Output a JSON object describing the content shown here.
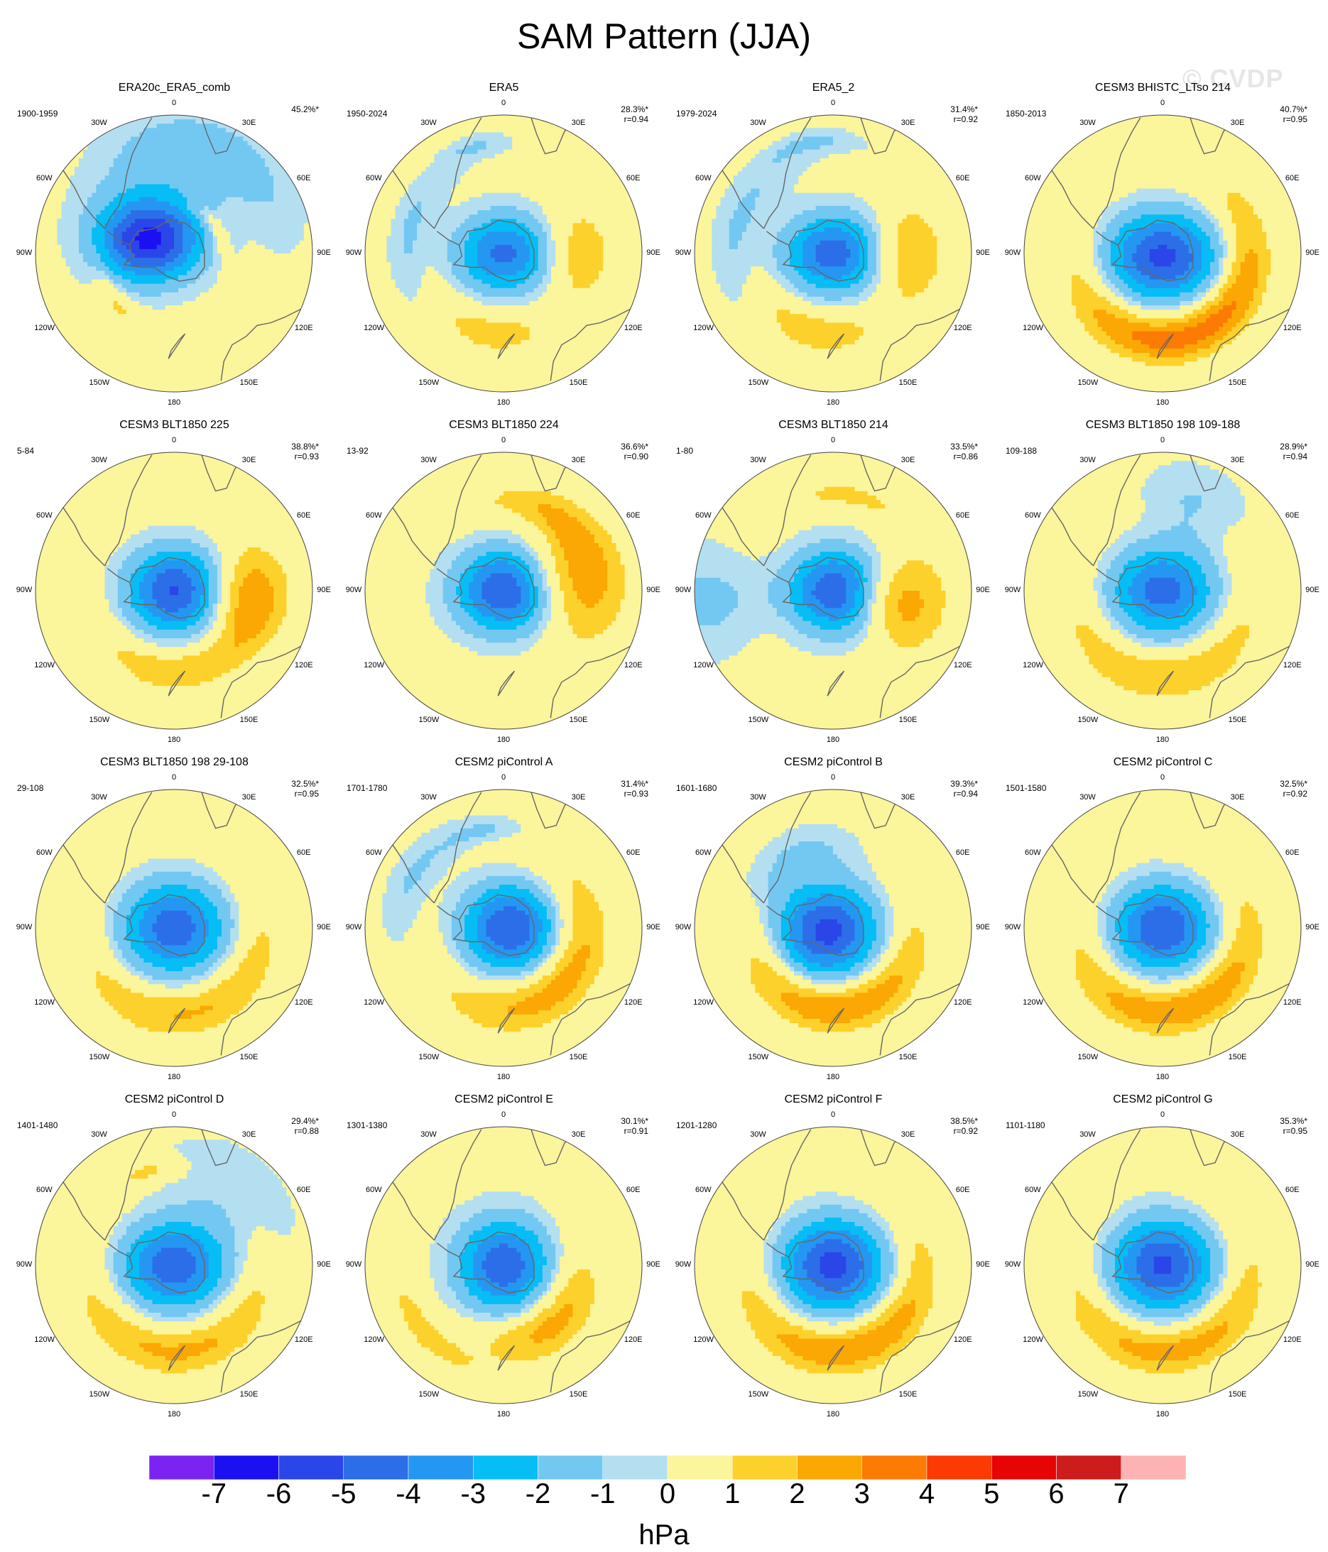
{
  "title": "SAM Pattern (JJA)",
  "watermark": "© CVDP",
  "colors": {
    "negative": [
      "#7b24f2",
      "#1b10f2",
      "#2a46e8",
      "#2c6ee8",
      "#2497f2",
      "#06bdf5",
      "#73c8f2",
      "#b4dff1"
    ],
    "positive": [
      "#fbf59b",
      "#fdd12c",
      "#fba704",
      "#fb7b04",
      "#fb3a04",
      "#e60404",
      "#cd1c1c",
      "#fdb3b3"
    ],
    "coast": "#666666",
    "border": "#444444"
  },
  "colorbar": {
    "ticks": [
      "-7",
      "-6",
      "-5",
      "-4",
      "-3",
      "-2",
      "-1",
      "0",
      "1",
      "2",
      "3",
      "4",
      "5",
      "6",
      "7"
    ],
    "unit": "hPa"
  },
  "lon_labels": [
    "0",
    "30E",
    "60E",
    "90E",
    "120E",
    "150E",
    "180",
    "150W",
    "120W",
    "90W",
    "60W",
    "30W"
  ],
  "panels": [
    {
      "title": "ERA20c_ERA5_comb",
      "period": "1900-1959",
      "pct": "45.2%*",
      "r": "",
      "field": {
        "core": -6.3,
        "ax": 0.4,
        "ay": 0.32,
        "cx": -0.18,
        "cy": 0.1,
        "pos": [
          [
            60,
            0.36,
            1.5,
            0.22,
            0.06
          ],
          [
            230,
            0.55,
            1.5,
            0.16,
            0.1
          ]
        ],
        "negext": [
          [
            355,
            0.68,
            -1.2,
            0.3,
            0.42
          ],
          [
            40,
            0.8,
            -1.0,
            0.3,
            0.3
          ]
        ]
      }
    },
    {
      "title": "ERA5",
      "period": "1950-2024",
      "pct": "28.3%*",
      "r": "r=0.94",
      "field": {
        "core": -4.3,
        "ax": 0.36,
        "ay": 0.3,
        "cx": 0.0,
        "cy": 0.0,
        "pos": [
          [
            90,
            0.55,
            1.8,
            0.22,
            0.28
          ],
          [
            190,
            0.58,
            1.6,
            0.28,
            0.18
          ]
        ],
        "negext": [
          [
            285,
            0.7,
            -1.1,
            0.3,
            0.16
          ],
          [
            345,
            0.8,
            -1.0,
            0.12,
            0.1
          ]
        ]
      }
    },
    {
      "title": "ERA5_2",
      "period": "1979-2024",
      "pct": "31.4%*",
      "r": "r=0.92",
      "field": {
        "core": -4.6,
        "ax": 0.37,
        "ay": 0.3,
        "cx": 0.0,
        "cy": 0.0,
        "pos": [
          [
            90,
            0.55,
            2.1,
            0.22,
            0.3
          ],
          [
            195,
            0.58,
            1.8,
            0.3,
            0.18
          ]
        ],
        "negext": [
          [
            290,
            0.72,
            -1.1,
            0.34,
            0.2
          ],
          [
            350,
            0.82,
            -1.0,
            0.16,
            0.1
          ]
        ]
      }
    },
    {
      "title": "CESM3 BHISTC_LTso 214",
      "period": "1850-2013",
      "pct": "40.7%*",
      "r": "r=0.95",
      "field": {
        "core": -5.3,
        "ax": 0.42,
        "ay": 0.34,
        "cx": 0.0,
        "cy": -0.02,
        "pos": [
          [
            120,
            0.62,
            2.6,
            0.5,
            0.2
          ],
          [
            200,
            0.62,
            2.2,
            0.45,
            0.2
          ]
        ],
        "negext": []
      }
    },
    {
      "title": "CESM3 BLT1850 225",
      "period": "5-84",
      "pct": "38.8%*",
      "r": "r=0.93",
      "field": {
        "core": -5.1,
        "ax": 0.36,
        "ay": 0.32,
        "cx": 0.0,
        "cy": 0.0,
        "pos": [
          [
            95,
            0.55,
            2.8,
            0.22,
            0.32
          ],
          [
            175,
            0.58,
            1.9,
            0.4,
            0.18
          ]
        ],
        "negext": []
      }
    },
    {
      "title": "CESM3 BLT1850 224",
      "period": "13-92",
      "pct": "36.6%*",
      "r": "r=0.90",
      "field": {
        "core": -5.0,
        "ax": 0.37,
        "ay": 0.32,
        "cx": 0.0,
        "cy": 0.0,
        "pos": [
          [
            80,
            0.55,
            2.6,
            0.28,
            0.4
          ],
          [
            30,
            0.65,
            1.6,
            0.3,
            0.16
          ]
        ],
        "negext": []
      }
    },
    {
      "title": "CESM3 BLT1850 214",
      "period": "1-80",
      "pct": "33.5%*",
      "r": "r=0.86",
      "field": {
        "core": -4.8,
        "ax": 0.34,
        "ay": 0.32,
        "cx": 0.0,
        "cy": 0.0,
        "pos": [
          [
            100,
            0.52,
            2.5,
            0.22,
            0.36
          ],
          [
            10,
            0.7,
            1.5,
            0.2,
            0.1
          ]
        ],
        "negext": [
          [
            265,
            0.9,
            -1.2,
            0.16,
            0.55
          ]
        ]
      }
    },
    {
      "title": "CESM3 BLT1850 198 109-188",
      "period": "109-188",
      "pct": "28.9%*",
      "r": "r=0.94",
      "field": {
        "core": -4.5,
        "ax": 0.4,
        "ay": 0.34,
        "cx": 0.0,
        "cy": 0.0,
        "pos": [
          [
            180,
            0.62,
            2.0,
            0.6,
            0.2
          ]
        ],
        "negext": [
          [
            20,
            0.68,
            -1.1,
            0.2,
            0.32
          ]
        ]
      }
    },
    {
      "title": "CESM3 BLT1850 198 29-108",
      "period": "29-108",
      "pct": "32.5%*",
      "r": "r=0.95",
      "field": {
        "core": -4.7,
        "ax": 0.4,
        "ay": 0.36,
        "cx": 0.0,
        "cy": 0.0,
        "pos": [
          [
            165,
            0.62,
            2.2,
            0.6,
            0.2
          ]
        ],
        "negext": []
      }
    },
    {
      "title": "CESM2 piControl A",
      "period": "1701-1780",
      "pct": "31.4%*",
      "r": "r=0.93",
      "field": {
        "core": -5.0,
        "ax": 0.36,
        "ay": 0.34,
        "cx": 0.04,
        "cy": 0.0,
        "pos": [
          [
            135,
            0.58,
            2.7,
            0.55,
            0.22
          ]
        ],
        "negext": [
          [
            300,
            0.75,
            -1.1,
            0.26,
            0.18
          ],
          [
            350,
            0.72,
            -1.0,
            0.14,
            0.1
          ]
        ]
      }
    },
    {
      "title": "CESM2 piControl B",
      "period": "1601-1680",
      "pct": "39.3%*",
      "r": "r=0.94",
      "field": {
        "core": -5.4,
        "ax": 0.38,
        "ay": 0.36,
        "cx": -0.04,
        "cy": -0.02,
        "pos": [
          [
            175,
            0.58,
            3.1,
            0.55,
            0.2
          ]
        ],
        "negext": [
          [
            330,
            0.58,
            -1.2,
            0.3,
            0.22
          ]
        ]
      }
    },
    {
      "title": "CESM2 piControl C",
      "period": "1501-1580",
      "pct": "32.5%*",
      "r": "r=0.92",
      "field": {
        "core": -5.0,
        "ax": 0.38,
        "ay": 0.34,
        "cx": 0.0,
        "cy": 0.0,
        "pos": [
          [
            165,
            0.6,
            3.0,
            0.6,
            0.2
          ]
        ],
        "negext": []
      }
    },
    {
      "title": "CESM2 piControl D",
      "period": "1401-1480",
      "pct": "29.4%*",
      "r": "r=0.88",
      "field": {
        "core": -4.8,
        "ax": 0.4,
        "ay": 0.34,
        "cx": 0.0,
        "cy": 0.0,
        "pos": [
          [
            175,
            0.62,
            2.3,
            0.6,
            0.2
          ],
          [
            345,
            0.7,
            1.5,
            0.12,
            0.1
          ]
        ],
        "negext": [
          [
            40,
            0.68,
            -1.1,
            0.3,
            0.36
          ]
        ]
      }
    },
    {
      "title": "CESM2 piControl E",
      "period": "1301-1380",
      "pct": "30.1%*",
      "r": "r=0.91",
      "field": {
        "core": -4.8,
        "ax": 0.36,
        "ay": 0.36,
        "cx": 0.0,
        "cy": 0.0,
        "pos": [
          [
            140,
            0.55,
            2.6,
            0.35,
            0.22
          ],
          [
            230,
            0.75,
            1.6,
            0.22,
            0.12
          ]
        ],
        "negext": []
      }
    },
    {
      "title": "CESM2 piControl F",
      "period": "1201-1280",
      "pct": "38.5%*",
      "r": "r=0.92",
      "field": {
        "core": -5.4,
        "ax": 0.4,
        "ay": 0.36,
        "cx": 0.0,
        "cy": 0.0,
        "pos": [
          [
            165,
            0.62,
            3.0,
            0.6,
            0.2
          ]
        ],
        "negext": []
      }
    },
    {
      "title": "CESM2 piControl G",
      "period": "1101-1180",
      "pct": "35.3%*",
      "r": "r=0.95",
      "field": {
        "core": -5.2,
        "ax": 0.4,
        "ay": 0.36,
        "cx": 0.0,
        "cy": 0.0,
        "pos": [
          [
            170,
            0.62,
            2.6,
            0.6,
            0.2
          ]
        ],
        "negext": []
      }
    }
  ]
}
